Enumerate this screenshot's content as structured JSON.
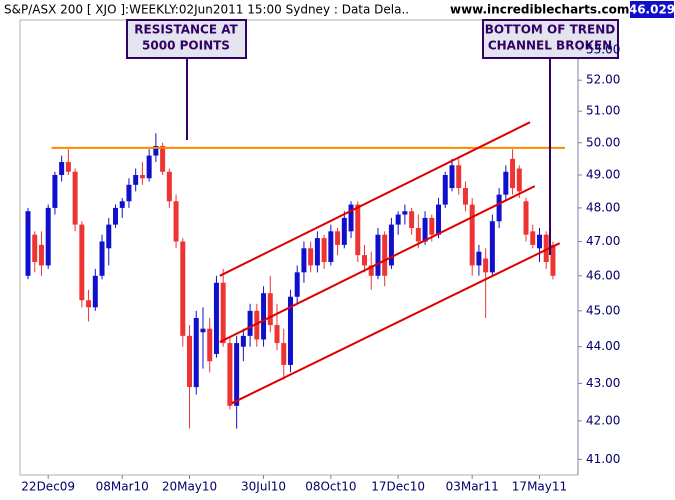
{
  "chart_data": {
    "type": "candlestick",
    "title": "S&P/ASX 200 [ XJO ]:WEEKLY:02Jun2011 15:00 Sydney : Data Dela..",
    "source": "www.incrediblecharts.com",
    "last_value": 46.029,
    "log_scale": true,
    "up_color": "#1010cc",
    "down_color": "#ee3333",
    "ylim": [
      40.6,
      54.0
    ],
    "yticks": [
      {
        "value": 41,
        "label": "41.00"
      },
      {
        "value": 42,
        "label": "42.00"
      },
      {
        "value": 43,
        "label": "43.00"
      },
      {
        "value": 44,
        "label": "44.00"
      },
      {
        "value": 45,
        "label": "45.00"
      },
      {
        "value": 46,
        "label": "46.00"
      },
      {
        "value": 47,
        "label": "47.00"
      },
      {
        "value": 48,
        "label": "48.00"
      },
      {
        "value": 49,
        "label": "49.00"
      },
      {
        "value": 50,
        "label": "50.00"
      },
      {
        "value": 51,
        "label": "51.00"
      },
      {
        "value": 52,
        "label": "52.00"
      },
      {
        "value": 53,
        "label": "53.00"
      }
    ],
    "categories": [
      null,
      null,
      null,
      "22Dec09",
      null,
      null,
      null,
      null,
      null,
      null,
      null,
      null,
      null,
      null,
      "08Mar10",
      null,
      null,
      null,
      null,
      null,
      null,
      null,
      null,
      null,
      "20May10",
      null,
      null,
      null,
      null,
      null,
      null,
      null,
      null,
      null,
      null,
      "30Jul10",
      null,
      null,
      null,
      null,
      null,
      null,
      null,
      null,
      null,
      "08Oct10",
      null,
      null,
      null,
      null,
      null,
      null,
      null,
      null,
      null,
      "17Dec10",
      null,
      null,
      null,
      null,
      null,
      null,
      null,
      null,
      null,
      null,
      "03Mar11",
      null,
      null,
      null,
      null,
      null,
      null,
      null,
      null,
      null,
      "17May11",
      null,
      null
    ],
    "open": [
      46.0,
      47.2,
      46.9,
      46.3,
      48.0,
      49.0,
      49.4,
      49.1,
      47.5,
      45.3,
      45.1,
      46.0,
      46.8,
      47.5,
      48.0,
      48.2,
      48.7,
      49.0,
      48.9,
      49.6,
      49.9,
      49.1,
      48.2,
      47.0,
      44.3,
      42.9,
      44.4,
      44.5,
      43.8,
      45.8,
      44.1,
      42.4,
      44.0,
      44.3,
      45.0,
      44.2,
      45.5,
      44.6,
      44.1,
      43.5,
      45.4,
      46.1,
      46.8,
      46.3,
      47.1,
      46.4,
      47.3,
      46.9,
      47.3,
      48.1,
      46.6,
      46.3,
      46.0,
      47.2,
      46.3,
      47.5,
      47.8,
      47.9,
      47.4,
      47.0,
      47.7,
      47.2,
      48.1,
      48.6,
      49.3,
      48.6,
      48.1,
      46.3,
      46.5,
      46.1,
      47.6,
      48.4,
      49.5,
      49.2,
      48.2,
      47.3,
      46.8,
      47.2,
      46.9
    ],
    "high": [
      48.0,
      47.3,
      47.3,
      48.1,
      49.1,
      49.6,
      49.8,
      49.2,
      47.6,
      45.6,
      46.2,
      47.2,
      47.7,
      48.1,
      48.3,
      48.9,
      49.2,
      49.4,
      49.8,
      50.3,
      50.0,
      49.2,
      48.4,
      47.1,
      44.6,
      45.0,
      45.1,
      44.8,
      46.0,
      46.2,
      44.3,
      44.3,
      44.5,
      45.2,
      45.2,
      45.7,
      46.0,
      45.2,
      44.5,
      45.6,
      46.3,
      47.0,
      47.0,
      47.3,
      47.2,
      47.5,
      47.4,
      47.9,
      48.2,
      48.2,
      46.9,
      46.7,
      47.4,
      47.3,
      47.7,
      47.9,
      48.1,
      48.0,
      47.8,
      47.9,
      47.8,
      48.3,
      49.1,
      49.5,
      49.5,
      48.8,
      48.3,
      46.9,
      46.8,
      47.8,
      48.6,
      49.3,
      49.8,
      49.3,
      48.3,
      47.5,
      47.4,
      47.3,
      47.0
    ],
    "low": [
      45.9,
      46.1,
      46.0,
      46.2,
      47.8,
      48.8,
      49.0,
      47.3,
      45.1,
      44.7,
      45.0,
      45.9,
      46.3,
      47.4,
      47.7,
      48.0,
      48.5,
      48.7,
      48.8,
      49.4,
      49.0,
      48.0,
      46.8,
      44.0,
      41.8,
      42.7,
      43.4,
      43.3,
      43.7,
      44.0,
      42.3,
      41.8,
      43.6,
      44.0,
      44.0,
      44.0,
      44.4,
      43.9,
      43.1,
      43.3,
      45.2,
      45.8,
      46.1,
      46.1,
      46.2,
      46.3,
      46.6,
      46.8,
      47.1,
      46.4,
      46.1,
      45.6,
      45.9,
      45.7,
      46.2,
      47.2,
      47.5,
      47.2,
      46.8,
      46.9,
      47.0,
      47.1,
      48.0,
      48.5,
      48.4,
      47.9,
      46.0,
      46.0,
      44.8,
      46.0,
      47.4,
      48.2,
      48.4,
      48.3,
      47.0,
      46.8,
      46.4,
      46.2,
      45.9
    ],
    "close": [
      47.9,
      46.4,
      46.3,
      48.0,
      49.0,
      49.4,
      49.1,
      47.5,
      45.3,
      45.1,
      46.0,
      47.0,
      47.5,
      48.0,
      48.2,
      48.7,
      49.0,
      48.9,
      49.6,
      49.9,
      49.1,
      48.2,
      47.0,
      44.3,
      42.9,
      44.8,
      44.5,
      43.6,
      45.8,
      44.1,
      42.4,
      44.1,
      44.3,
      45.0,
      44.2,
      45.5,
      44.6,
      44.1,
      43.5,
      45.4,
      46.1,
      46.8,
      46.3,
      47.1,
      46.4,
      47.3,
      46.9,
      47.7,
      48.1,
      46.6,
      46.3,
      46.0,
      47.2,
      46.0,
      47.5,
      47.8,
      47.9,
      47.4,
      47.0,
      47.7,
      47.2,
      48.1,
      49.0,
      49.3,
      48.6,
      48.1,
      46.3,
      46.7,
      46.1,
      47.6,
      48.4,
      49.1,
      48.6,
      48.5,
      47.2,
      46.9,
      47.2,
      46.4,
      46.0
    ],
    "trendlines": [
      {
        "color": "#ff8800",
        "x": [
          3.5,
          79.8
        ],
        "values": [
          49.84,
          49.84
        ]
      },
      {
        "color": "#dd0000",
        "x": [
          28.5,
          74.6
        ],
        "values": [
          46.0,
          50.65
        ]
      },
      {
        "color": "#dd0000",
        "x": [
          28.5,
          75.3
        ],
        "values": [
          44.13,
          48.66
        ]
      },
      {
        "color": "#dd0000",
        "x": [
          30.3,
          79.0
        ],
        "values": [
          42.47,
          46.95
        ]
      }
    ],
    "annotations": [
      {
        "lines": [
          "RESISTANCE AT",
          "5000 POINTS"
        ]
      },
      {
        "lines": [
          "BOTTOM OF TREND",
          "CHANNEL BROKEN"
        ]
      }
    ]
  }
}
